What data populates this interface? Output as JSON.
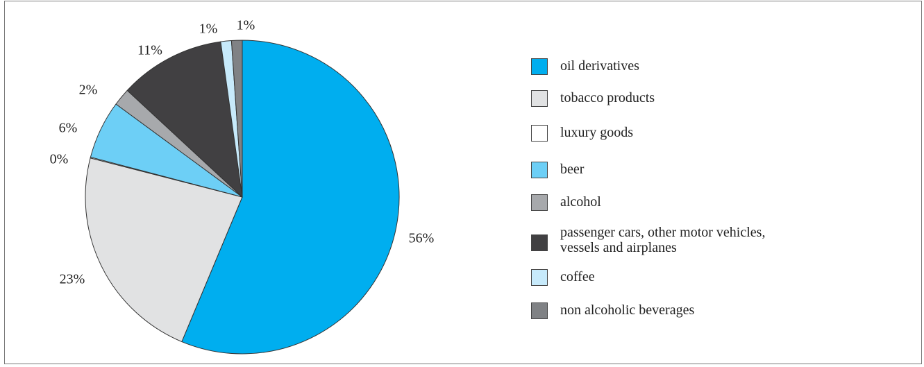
{
  "chart_data": {
    "type": "pie",
    "slices": [
      {
        "label": "oil derivatives",
        "value": 56.3,
        "value_label": "56%",
        "color": "#00aeef"
      },
      {
        "label": "tobacco products",
        "value": 22.7,
        "value_label": "23%",
        "color": "#e1e2e3"
      },
      {
        "label": "luxury goods",
        "value": 0.1,
        "value_label": "0%",
        "color": "#ffffff"
      },
      {
        "label": "beer",
        "value": 6.0,
        "value_label": "6%",
        "color": "#6dcff6"
      },
      {
        "label": "alcohol",
        "value": 1.8,
        "value_label": "2%",
        "color": "#a7a9ac"
      },
      {
        "label": "passenger cars, other motor vehicles, vessels and airplanes",
        "value": 10.9,
        "value_label": "11%",
        "color": "#414042"
      },
      {
        "label": "coffee",
        "value": 1.1,
        "value_label": "1%",
        "color": "#c7eafb"
      },
      {
        "label": "non alcoholic beverages",
        "value": 1.1,
        "value_label": "1%",
        "color": "#808285"
      }
    ],
    "start": "top",
    "direction": "clockwise",
    "legend_position": "right"
  }
}
